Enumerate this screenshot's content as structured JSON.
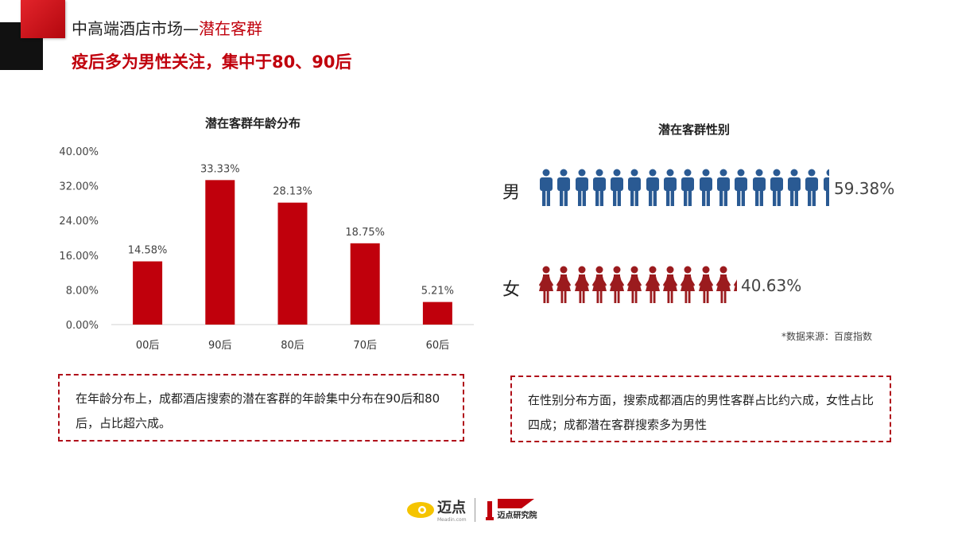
{
  "header": {
    "title_prefix": "中高端酒店市场—",
    "title_highlight": "潜在客群",
    "subtitle": "疫后多为男性关注，集中于80、90后"
  },
  "chart_data": [
    {
      "type": "bar",
      "title": "潜在客群年龄分布",
      "categories": [
        "00后",
        "90后",
        "80后",
        "70后",
        "60后"
      ],
      "values": [
        14.58,
        33.33,
        28.13,
        18.75,
        5.21
      ],
      "data_labels": [
        "14.58%",
        "33.33%",
        "28.13%",
        "18.75%",
        "5.21%"
      ],
      "yticks": [
        "0.00%",
        "8.00%",
        "16.00%",
        "24.00%",
        "32.00%",
        "40.00%"
      ],
      "ylim": [
        0,
        40
      ],
      "color": "#c0000c",
      "grid": false,
      "legend": "none"
    },
    {
      "type": "pictogram",
      "title": "潜在客群性别",
      "series": [
        {
          "name": "男",
          "value": 59.38,
          "label": "59.38%",
          "color": "#2a5a93",
          "icon": "male-person-icon"
        },
        {
          "name": "女",
          "value": 40.63,
          "label": "40.63%",
          "color": "#9b1b1e",
          "icon": "female-person-icon"
        }
      ]
    }
  ],
  "source": "*数据来源：百度指数",
  "notes": {
    "left": "在年龄分布上，成都酒店搜索的潜在客群的年龄集中分布在90后和80后，占比超六成。",
    "right": "在性别分布方面，搜索成都酒店的男性客群占比约六成，女性占比四成；成都潜在客群搜索多为男性"
  },
  "footer": {
    "logo_name": "迈点",
    "logo_domain": "Meadin.com",
    "institute": "迈点研究院"
  }
}
